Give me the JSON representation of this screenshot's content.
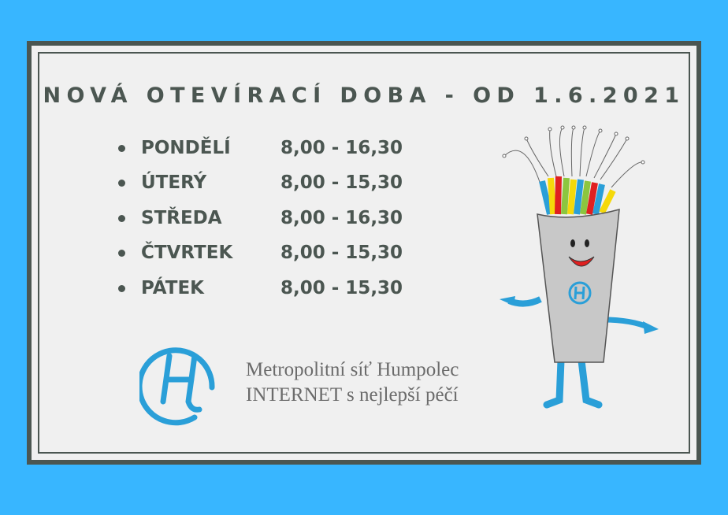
{
  "title": "NOVÁ OTEVÍRACÍ DOBA - OD 1.6.2021",
  "hours": [
    {
      "day": "PONDĚLÍ",
      "time": "8,00 - 16,30"
    },
    {
      "day": "ÚTERÝ",
      "time": "8,00 - 15,30"
    },
    {
      "day": "STŘEDA",
      "time": "8,00 - 16,30"
    },
    {
      "day": "ČTVRTEK",
      "time": "8,00 - 15,30"
    },
    {
      "day": "PÁTEK",
      "time": "8,00 - 15,30"
    }
  ],
  "tagline": {
    "line1": "Metropolitní síť Humpolec",
    "line2": "INTERNET s nejlepší péčí"
  },
  "colors": {
    "background": "#38b6ff",
    "panel": "#f0f0f0",
    "text": "#4b5651",
    "brand": "#2a9fd8"
  }
}
